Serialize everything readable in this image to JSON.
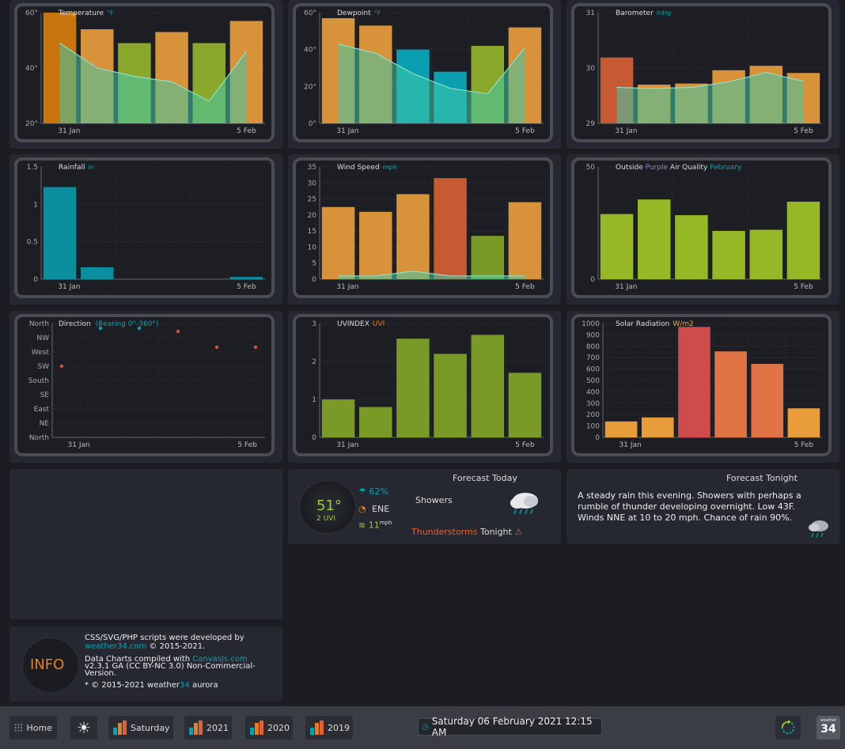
{
  "colors": {
    "orange": "#e8962f",
    "green": "#8db12e",
    "teal": "#00a4b4",
    "red": "#d9503f",
    "area": "#3ec0a0"
  },
  "charts": {
    "temperature": {
      "title": "Temperature",
      "unit": "°F",
      "xstart": "31 Jan",
      "xend": "5 Feb",
      "yticks": [
        "60°",
        "40°",
        "20°"
      ]
    },
    "dewpoint": {
      "title": "Dewpoint",
      "unit": "°F",
      "xstart": "31 Jan",
      "xend": "5 Feb",
      "yticks": [
        "60°",
        "40°",
        "20°",
        "0°"
      ]
    },
    "barometer": {
      "title": "Barometer",
      "unit": "inHg",
      "xstart": "31 Jan",
      "xend": "5 Feb",
      "yticks": [
        "31",
        "30",
        "29"
      ]
    },
    "rainfall": {
      "title": "Rainfall",
      "unit": "in",
      "xstart": "31 Jan",
      "xend": "5 Feb",
      "yticks": [
        "1.5",
        "1",
        "0.5",
        "0"
      ]
    },
    "windspeed": {
      "title": "Wind Speed",
      "unit": "mph",
      "xstart": "31 Jan",
      "xend": "5 Feb",
      "yticks": [
        "35",
        "30",
        "25",
        "20",
        "15",
        "10",
        "5",
        "0"
      ]
    },
    "airquality": {
      "title_a": "Outside ",
      "title_b": "Purple",
      "title_c": " Air Quality",
      "unit": "February",
      "xstart": "31 Jan",
      "xend": "5 Feb",
      "yticks": [
        "50",
        "0"
      ]
    },
    "direction": {
      "title": "Direction ",
      "unit": "(Bearing 0°-360°)",
      "xstart": "31 Jan",
      "xend": "5 Feb",
      "yticks": [
        "North",
        "NW",
        "West",
        "SW",
        "South",
        "SE",
        "East",
        "NE",
        "North"
      ]
    },
    "uvindex": {
      "title": "UVINDEX",
      "unit": "UVI",
      "xstart": "31 Jan",
      "xend": "5 Feb",
      "yticks": [
        "3",
        "2",
        "1",
        "0"
      ]
    },
    "solar": {
      "title": "Solar Radiation",
      "unit": "W/m2",
      "xstart": "31 Jan",
      "xend": "5 Feb",
      "yticks": [
        "1000",
        "900",
        "800",
        "700",
        "600",
        "500",
        "400",
        "300",
        "200",
        "100",
        "0"
      ]
    }
  },
  "chart_data": [
    {
      "type": "bar",
      "id": "temperature",
      "ylim": [
        20,
        60
      ],
      "values": [
        60,
        54,
        49,
        53,
        49,
        57
      ],
      "area": [
        49,
        40,
        37,
        35,
        28,
        46
      ],
      "colors": [
        "#c8750f",
        "#d7923a",
        "#8aa82c",
        "#d7923a",
        "#8aa82c",
        "#d7923a"
      ]
    },
    {
      "type": "bar",
      "id": "dewpoint",
      "ylim": [
        0,
        60
      ],
      "values": [
        57,
        53,
        40,
        28,
        42,
        52
      ],
      "area": [
        43,
        38,
        27,
        19,
        16,
        41
      ],
      "colors": [
        "#d7923a",
        "#d7923a",
        "#0a9fb0",
        "#0a9fb0",
        "#8aa82c",
        "#d7923a"
      ]
    },
    {
      "type": "bar",
      "id": "barometer",
      "ylim": [
        29,
        31
      ],
      "values": [
        30.19,
        29.7,
        29.72,
        29.96,
        30.04,
        29.91
      ],
      "area": [
        29.65,
        29.63,
        29.65,
        29.75,
        29.92,
        29.76
      ],
      "colors": [
        "#c85a33",
        "#d7923a",
        "#d7923a",
        "#d7923a",
        "#d7923a",
        "#d7923a"
      ]
    },
    {
      "type": "bar",
      "id": "rainfall",
      "ylim": [
        0,
        1.5
      ],
      "values": [
        1.23,
        0.16,
        0,
        0,
        0,
        0.03
      ],
      "colors": [
        "#0a8fa0",
        "#0a8fa0",
        "#0a8fa0",
        "#0a8fa0",
        "#0a8fa0",
        "#0a8fa0"
      ]
    },
    {
      "type": "bar",
      "id": "windspeed",
      "ylim": [
        0,
        35
      ],
      "values": [
        22.5,
        21,
        26.5,
        31.5,
        13.5,
        24
      ],
      "area": [
        1,
        1,
        2.5,
        1,
        1,
        1
      ],
      "colors": [
        "#d7923a",
        "#d7923a",
        "#d7923a",
        "#c85a33",
        "#7a9a28",
        "#d7923a"
      ]
    },
    {
      "type": "bar",
      "id": "airquality",
      "ylim": [
        0,
        50
      ],
      "values": [
        29,
        35.5,
        28.5,
        21.5,
        22,
        34.5
      ],
      "colors": [
        "#96b826",
        "#96b826",
        "#96b826",
        "#96b826",
        "#96b826",
        "#96b826"
      ]
    },
    {
      "type": "scatter",
      "id": "direction",
      "ylim": [
        0,
        360
      ],
      "x": [
        0,
        1,
        2,
        3,
        4,
        5
      ],
      "values": [
        225,
        345,
        345,
        335,
        285,
        285
      ],
      "colors": [
        "#d9503f",
        "#0aa3b4",
        "#0aa3b4",
        "#d9503f",
        "#d9503f",
        "#d9503f"
      ]
    },
    {
      "type": "bar",
      "id": "uvindex",
      "ylim": [
        0,
        3
      ],
      "values": [
        1,
        0.8,
        2.6,
        2.2,
        2.7,
        1.7
      ],
      "colors": [
        "#7a9a28",
        "#7a9a28",
        "#7a9a28",
        "#7a9a28",
        "#7a9a28",
        "#7a9a28"
      ]
    },
    {
      "type": "bar",
      "id": "solar",
      "ylim": [
        0,
        1000
      ],
      "values": [
        140,
        175,
        970,
        755,
        645,
        255
      ],
      "colors": [
        "#e89d3a",
        "#e89d3a",
        "#d04b4b",
        "#e07444",
        "#e07444",
        "#e89d3a"
      ]
    }
  ],
  "forecast_today": {
    "title": "Forecast Today",
    "temp": "51°",
    "uvi": "2 UVI",
    "humidity": "62%",
    "wind_dir": "ENE",
    "wind_speed": "11",
    "wind_unit": "mph",
    "condition": "Showers",
    "alert_a": "Thunderstorms",
    "alert_b": " Tonight"
  },
  "forecast_tonight": {
    "title": "Forecast Tonight",
    "text": "A steady rain this evening. Showers with perhaps a rumble of thunder developing overnight. Low 43F. Winds NNE at 10 to 20 mph. Chance of rain 90%."
  },
  "info": {
    "label": "INFO",
    "line1": "CSS/SVG/PHP scripts were developed by",
    "line2a": "weather34.com",
    "line2b": " © 2015-2021.",
    "line3a": "Data Charts compiled with ",
    "line3b": "CanvasJs.com",
    "line4": "v2.3.1 GA (CC BY-NC 3.0) Non-Commercial-",
    "line5": "Version.",
    "line6a": "* © 2015-2021 weather",
    "line6b": "34",
    "line6c": " aurora"
  },
  "nav": {
    "home": "Home",
    "saturday": "Saturday",
    "y2021": "2021",
    "y2020": "2020",
    "y2019": "2019",
    "datetime": "Saturday 06 February 2021 12:15 AM",
    "badge_top": "weather",
    "badge_num": "34"
  }
}
